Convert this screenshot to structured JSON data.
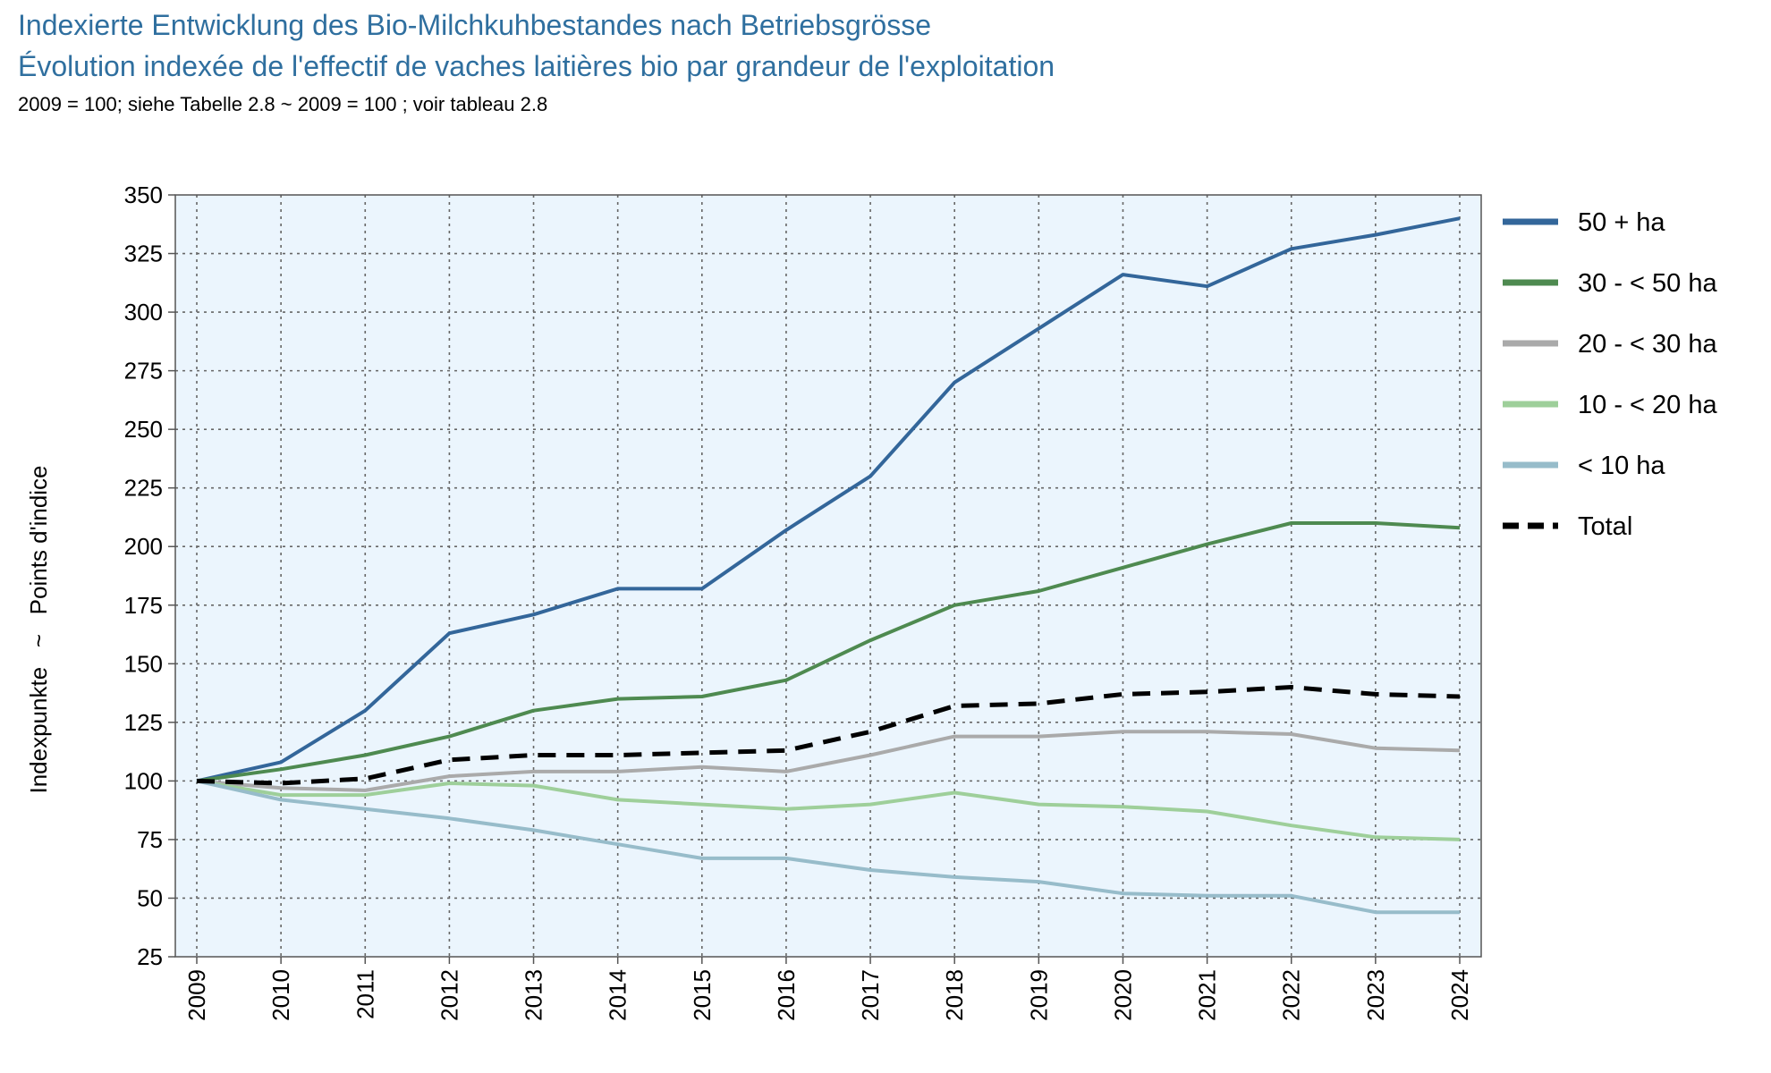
{
  "header": {
    "title_de": "Indexierte Entwicklung des Bio-Milchkuhbestandes nach Betriebsgrösse",
    "title_fr": "Évolution indexée de l'effectif de vaches laitières bio par grandeur de l'exploitation",
    "subtitle": "2009 = 100; siehe Tabelle 2.8  ~  2009 = 100 ; voir tableau 2.8"
  },
  "chart_data": {
    "type": "line",
    "ylabel": "Indexpunkte   ~   Points d'indice",
    "xlabel": "",
    "ylim": [
      25,
      350
    ],
    "yticks": [
      25,
      50,
      75,
      100,
      125,
      150,
      175,
      200,
      225,
      250,
      275,
      300,
      325,
      350
    ],
    "grid": true,
    "legend_position": "right",
    "categories": [
      "2009",
      "2010",
      "2011",
      "2012",
      "2013",
      "2014",
      "2015",
      "2016",
      "2017",
      "2018",
      "2019",
      "2020",
      "2021",
      "2022",
      "2023",
      "2024"
    ],
    "series": [
      {
        "name": "50 + ha",
        "color": "#33669a",
        "dash": false,
        "values": [
          100,
          108,
          130,
          163,
          171,
          182,
          182,
          207,
          230,
          270,
          293,
          316,
          311,
          327,
          333,
          340
        ]
      },
      {
        "name": "30 - < 50 ha",
        "color": "#4e8a50",
        "dash": false,
        "values": [
          100,
          105,
          111,
          119,
          130,
          135,
          136,
          143,
          160,
          175,
          181,
          191,
          201,
          210,
          210,
          208
        ]
      },
      {
        "name": "20 - < 30 ha",
        "color": "#aaaaaa",
        "dash": false,
        "values": [
          100,
          97,
          96,
          102,
          104,
          104,
          106,
          104,
          111,
          119,
          119,
          121,
          121,
          120,
          114,
          113
        ]
      },
      {
        "name": "10 - < 20 ha",
        "color": "#9ecf9a",
        "dash": false,
        "values": [
          100,
          94,
          94,
          99,
          98,
          92,
          90,
          88,
          90,
          95,
          90,
          89,
          87,
          81,
          76,
          75
        ]
      },
      {
        "name": "< 10 ha",
        "color": "#97bcca",
        "dash": false,
        "values": [
          100,
          92,
          88,
          84,
          79,
          73,
          67,
          67,
          62,
          59,
          57,
          52,
          51,
          51,
          44,
          44
        ]
      },
      {
        "name": "Total",
        "color": "#000000",
        "dash": true,
        "values": [
          100,
          99,
          101,
          109,
          111,
          111,
          112,
          113,
          121,
          132,
          133,
          137,
          138,
          140,
          137,
          136
        ]
      }
    ]
  }
}
